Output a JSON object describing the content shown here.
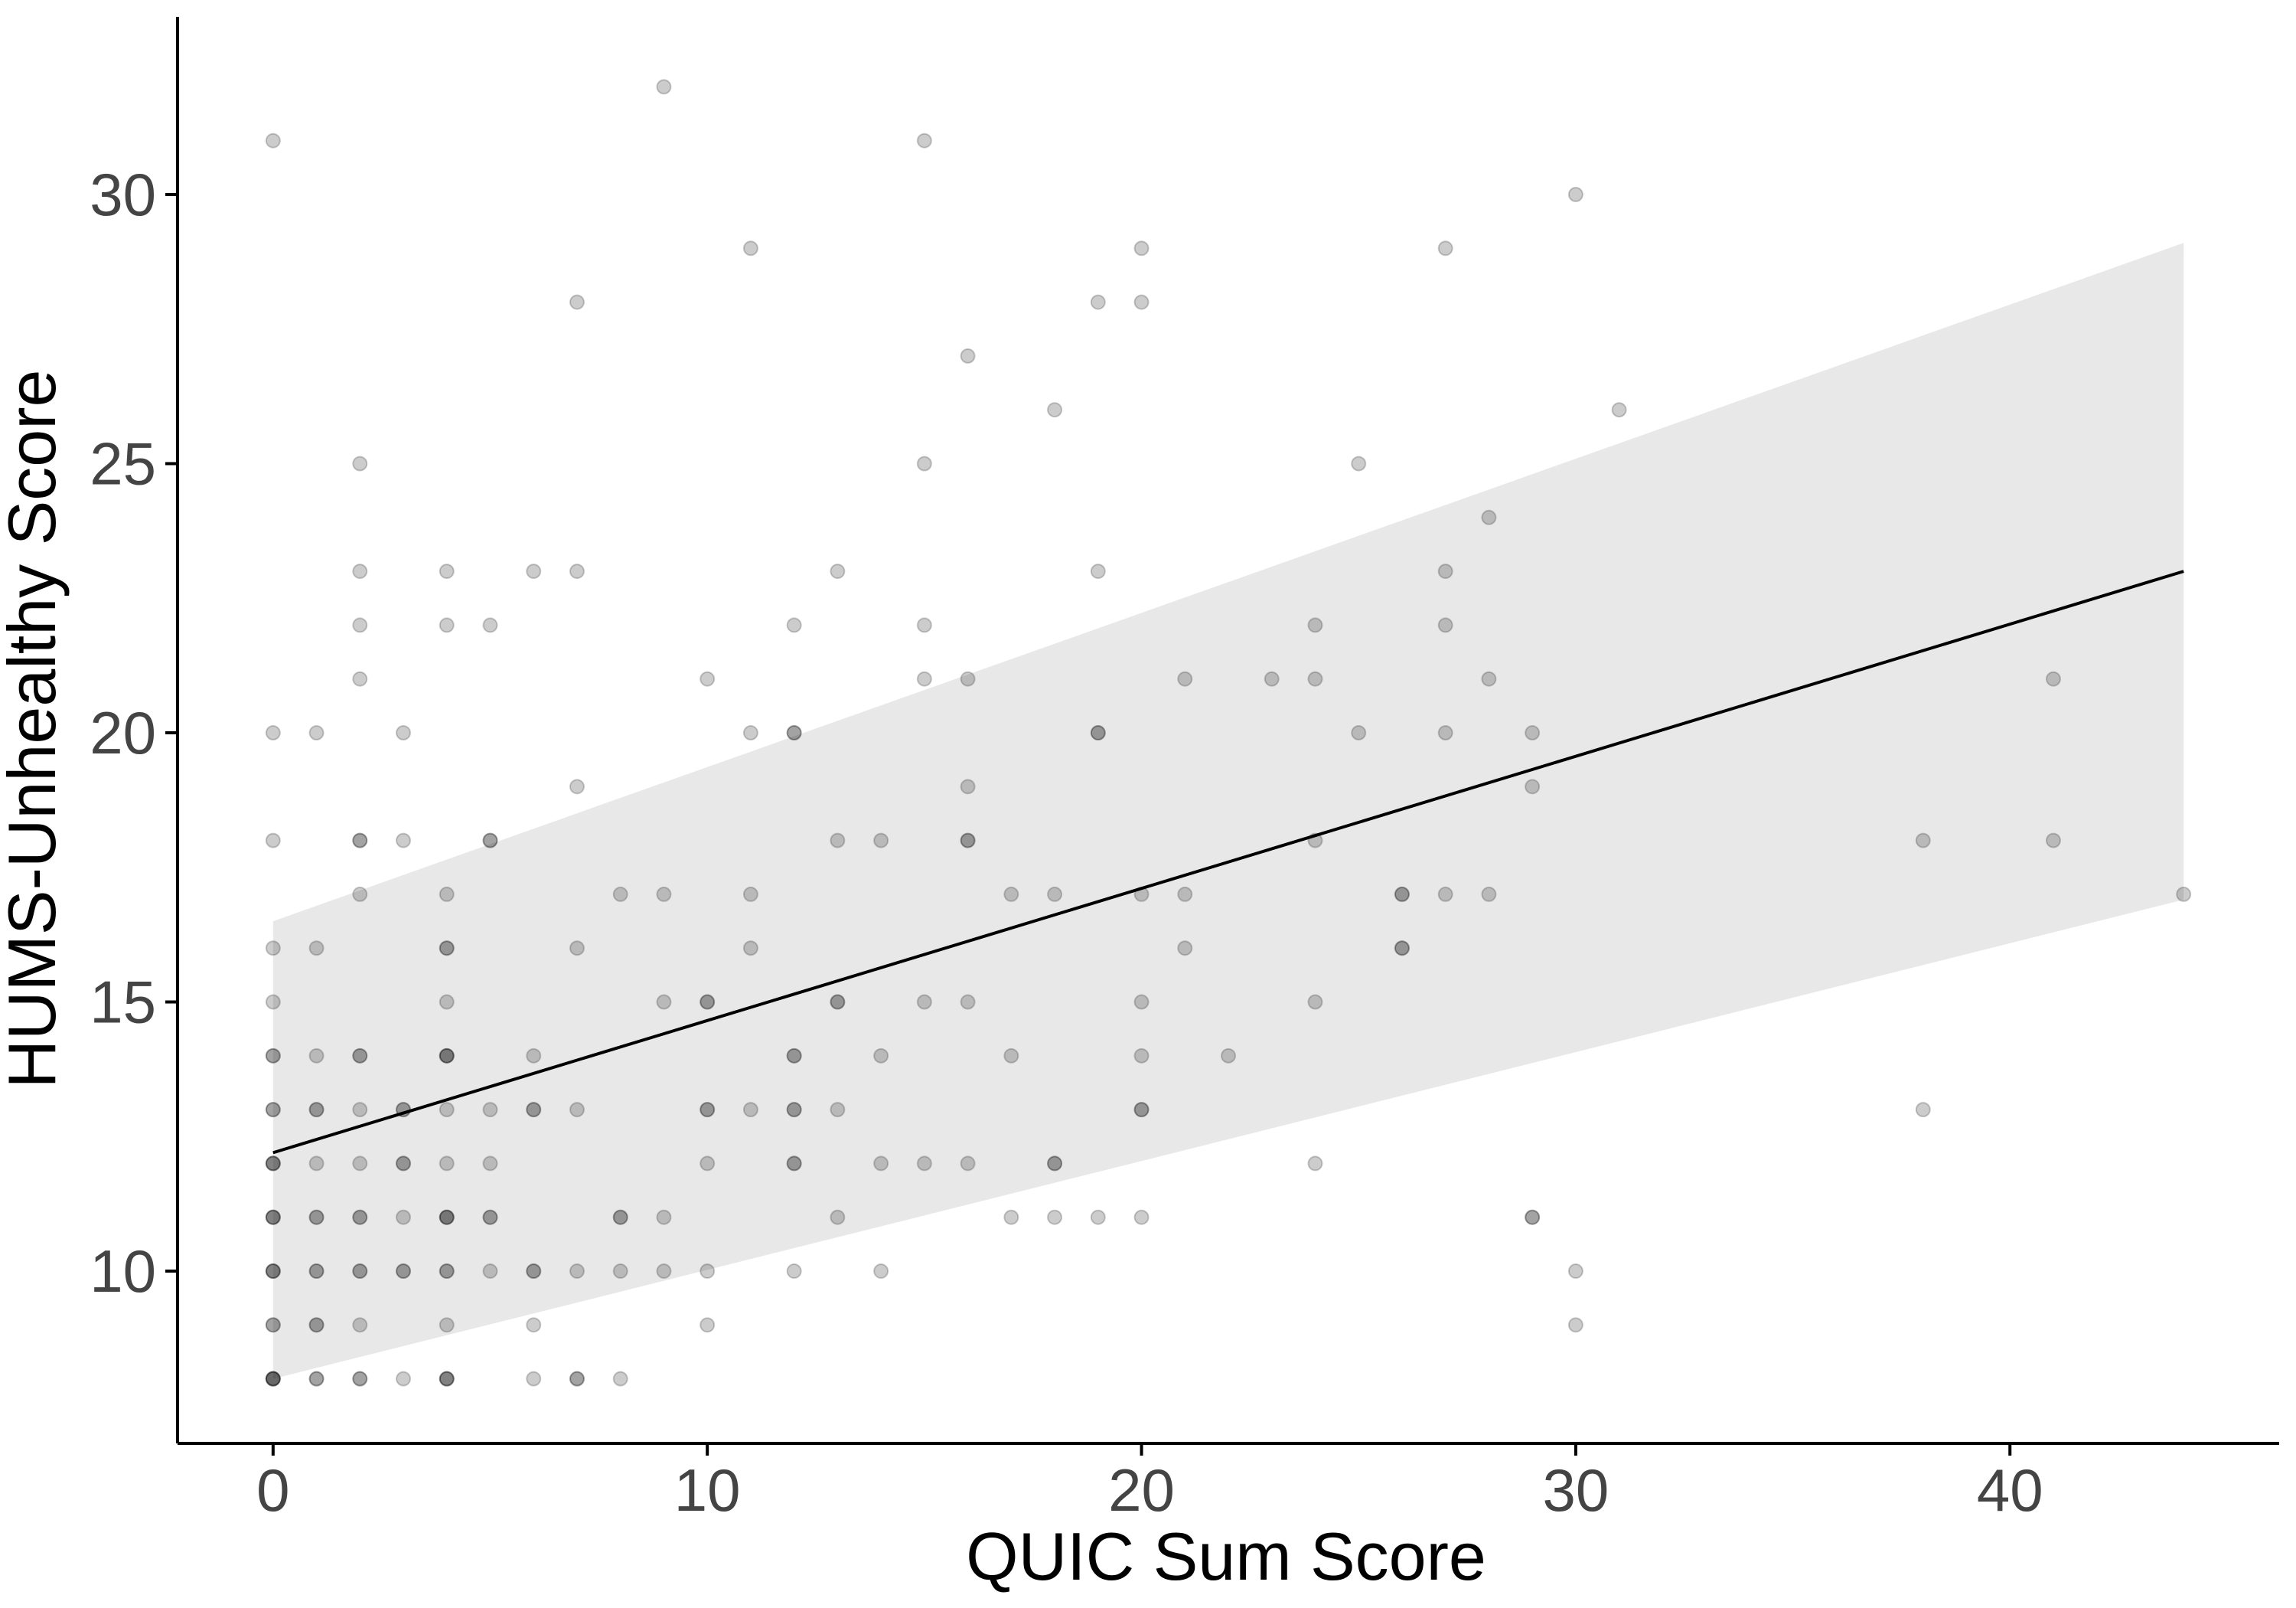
{
  "chart_data": {
    "type": "scatter",
    "title": "",
    "xlabel": "QUIC Sum Score",
    "ylabel": "HUMS-Unhealthy Score",
    "xlim": [
      -2.2,
      46.2
    ],
    "ylim": [
      6.8,
      33.3
    ],
    "x_ticks": [
      0,
      10,
      20,
      30,
      40
    ],
    "y_ticks": [
      10,
      15,
      20,
      25,
      30
    ],
    "grid": false,
    "legend": "none",
    "colors": {
      "point": "#000000",
      "band": "#e8e8e8",
      "line": "#000000",
      "axis": "#000000",
      "tick_text": "#444444"
    },
    "points": [
      [
        0,
        31
      ],
      [
        0,
        20
      ],
      [
        0,
        18
      ],
      [
        0,
        16
      ],
      [
        0,
        15
      ],
      [
        0,
        14
      ],
      [
        0,
        14
      ],
      [
        0,
        13
      ],
      [
        0,
        13
      ],
      [
        0,
        12
      ],
      [
        0,
        12
      ],
      [
        0,
        12
      ],
      [
        0,
        11
      ],
      [
        0,
        11
      ],
      [
        0,
        11
      ],
      [
        0,
        10
      ],
      [
        0,
        10
      ],
      [
        0,
        10
      ],
      [
        0,
        9
      ],
      [
        0,
        9
      ],
      [
        0,
        8
      ],
      [
        0,
        8
      ],
      [
        0,
        8
      ],
      [
        0,
        8
      ],
      [
        1,
        20
      ],
      [
        1,
        16
      ],
      [
        1,
        14
      ],
      [
        1,
        13
      ],
      [
        1,
        13
      ],
      [
        1,
        12
      ],
      [
        1,
        11
      ],
      [
        1,
        11
      ],
      [
        1,
        10
      ],
      [
        1,
        10
      ],
      [
        1,
        9
      ],
      [
        1,
        9
      ],
      [
        1,
        8
      ],
      [
        1,
        8
      ],
      [
        2,
        25
      ],
      [
        2,
        23
      ],
      [
        2,
        22
      ],
      [
        2,
        21
      ],
      [
        2,
        18
      ],
      [
        2,
        18
      ],
      [
        2,
        17
      ],
      [
        2,
        14
      ],
      [
        2,
        14
      ],
      [
        2,
        13
      ],
      [
        2,
        12
      ],
      [
        2,
        11
      ],
      [
        2,
        11
      ],
      [
        2,
        10
      ],
      [
        2,
        10
      ],
      [
        2,
        9
      ],
      [
        2,
        8
      ],
      [
        2,
        8
      ],
      [
        3,
        20
      ],
      [
        3,
        18
      ],
      [
        3,
        13
      ],
      [
        3,
        13
      ],
      [
        3,
        12
      ],
      [
        3,
        12
      ],
      [
        3,
        11
      ],
      [
        3,
        10
      ],
      [
        3,
        10
      ],
      [
        3,
        8
      ],
      [
        4,
        23
      ],
      [
        4,
        22
      ],
      [
        4,
        17
      ],
      [
        4,
        16
      ],
      [
        4,
        16
      ],
      [
        4,
        15
      ],
      [
        4,
        14
      ],
      [
        4,
        14
      ],
      [
        4,
        14
      ],
      [
        4,
        13
      ],
      [
        4,
        12
      ],
      [
        4,
        11
      ],
      [
        4,
        11
      ],
      [
        4,
        11
      ],
      [
        4,
        10
      ],
      [
        4,
        10
      ],
      [
        4,
        9
      ],
      [
        4,
        8
      ],
      [
        4,
        8
      ],
      [
        4,
        8
      ],
      [
        5,
        22
      ],
      [
        5,
        18
      ],
      [
        5,
        18
      ],
      [
        5,
        13
      ],
      [
        5,
        12
      ],
      [
        5,
        11
      ],
      [
        5,
        11
      ],
      [
        5,
        10
      ],
      [
        6,
        23
      ],
      [
        6,
        14
      ],
      [
        6,
        13
      ],
      [
        6,
        13
      ],
      [
        6,
        10
      ],
      [
        6,
        10
      ],
      [
        6,
        9
      ],
      [
        6,
        8
      ],
      [
        7,
        28
      ],
      [
        7,
        23
      ],
      [
        7,
        19
      ],
      [
        7,
        16
      ],
      [
        7,
        13
      ],
      [
        7,
        10
      ],
      [
        7,
        8
      ],
      [
        7,
        8
      ],
      [
        8,
        17
      ],
      [
        8,
        11
      ],
      [
        8,
        11
      ],
      [
        8,
        10
      ],
      [
        8,
        8
      ],
      [
        9,
        32
      ],
      [
        9,
        17
      ],
      [
        9,
        15
      ],
      [
        9,
        11
      ],
      [
        9,
        10
      ],
      [
        10,
        21
      ],
      [
        10,
        15
      ],
      [
        10,
        15
      ],
      [
        10,
        13
      ],
      [
        10,
        13
      ],
      [
        10,
        12
      ],
      [
        10,
        10
      ],
      [
        10,
        9
      ],
      [
        11,
        29
      ],
      [
        11,
        20
      ],
      [
        11,
        17
      ],
      [
        11,
        16
      ],
      [
        11,
        13
      ],
      [
        12,
        22
      ],
      [
        12,
        20
      ],
      [
        12,
        20
      ],
      [
        12,
        14
      ],
      [
        12,
        14
      ],
      [
        12,
        13
      ],
      [
        12,
        13
      ],
      [
        12,
        12
      ],
      [
        12,
        12
      ],
      [
        12,
        10
      ],
      [
        13,
        23
      ],
      [
        13,
        18
      ],
      [
        13,
        15
      ],
      [
        13,
        15
      ],
      [
        13,
        13
      ],
      [
        13,
        11
      ],
      [
        14,
        18
      ],
      [
        14,
        14
      ],
      [
        14,
        12
      ],
      [
        14,
        10
      ],
      [
        15,
        31
      ],
      [
        15,
        25
      ],
      [
        15,
        22
      ],
      [
        15,
        21
      ],
      [
        15,
        15
      ],
      [
        15,
        12
      ],
      [
        16,
        27
      ],
      [
        16,
        21
      ],
      [
        16,
        19
      ],
      [
        16,
        18
      ],
      [
        16,
        18
      ],
      [
        16,
        15
      ],
      [
        16,
        12
      ],
      [
        17,
        17
      ],
      [
        17,
        14
      ],
      [
        17,
        11
      ],
      [
        18,
        26
      ],
      [
        18,
        17
      ],
      [
        18,
        12
      ],
      [
        18,
        12
      ],
      [
        18,
        11
      ],
      [
        19,
        28
      ],
      [
        19,
        23
      ],
      [
        19,
        20
      ],
      [
        19,
        20
      ],
      [
        19,
        11
      ],
      [
        20,
        29
      ],
      [
        20,
        28
      ],
      [
        20,
        17
      ],
      [
        20,
        15
      ],
      [
        20,
        14
      ],
      [
        20,
        13
      ],
      [
        20,
        13
      ],
      [
        20,
        11
      ],
      [
        21,
        21
      ],
      [
        21,
        17
      ],
      [
        21,
        16
      ],
      [
        22,
        14
      ],
      [
        23,
        21
      ],
      [
        24,
        22
      ],
      [
        24,
        21
      ],
      [
        24,
        18
      ],
      [
        24,
        15
      ],
      [
        24,
        12
      ],
      [
        25,
        25
      ],
      [
        25,
        20
      ],
      [
        26,
        17
      ],
      [
        26,
        17
      ],
      [
        26,
        16
      ],
      [
        26,
        16
      ],
      [
        27,
        29
      ],
      [
        27,
        23
      ],
      [
        27,
        22
      ],
      [
        27,
        20
      ],
      [
        27,
        17
      ],
      [
        28,
        24
      ],
      [
        28,
        21
      ],
      [
        28,
        17
      ],
      [
        29,
        20
      ],
      [
        29,
        19
      ],
      [
        29,
        11
      ],
      [
        29,
        11
      ],
      [
        30,
        30
      ],
      [
        30,
        10
      ],
      [
        30,
        9
      ],
      [
        31,
        26
      ],
      [
        38,
        18
      ],
      [
        38,
        13
      ],
      [
        41,
        21
      ],
      [
        41,
        18
      ],
      [
        44,
        17
      ]
    ],
    "fit_line": {
      "x": [
        0,
        44
      ],
      "y": [
        12.2,
        23.0
      ]
    },
    "confidence_band": {
      "x": [
        0,
        44
      ],
      "upper": [
        16.5,
        29.1
      ],
      "lower": [
        8.0,
        16.9
      ]
    }
  }
}
